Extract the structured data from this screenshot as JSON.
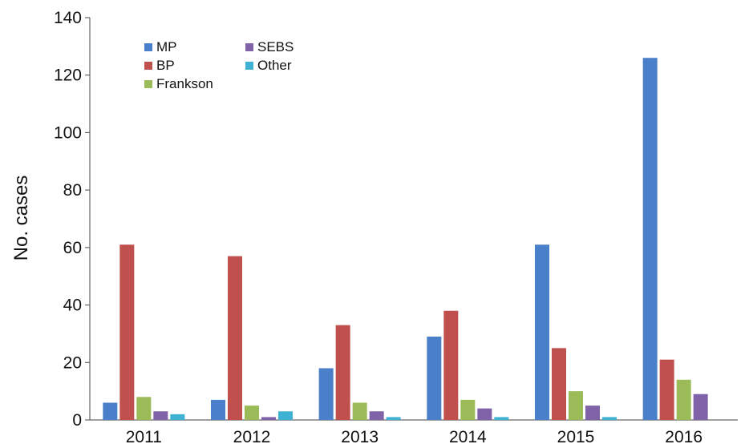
{
  "chart_data": {
    "type": "bar",
    "title": "",
    "xlabel": "",
    "ylabel": "No. cases",
    "ylim": [
      0,
      140
    ],
    "yticks": [
      0,
      20,
      40,
      60,
      80,
      100,
      120,
      140
    ],
    "grid": false,
    "legend_position": "top-left",
    "categories": [
      "2011",
      "2012",
      "2013",
      "2014",
      "2015",
      "2016"
    ],
    "series": [
      {
        "name": "MP",
        "color": "#4a7fc9",
        "values": [
          6,
          7,
          18,
          29,
          61,
          126
        ]
      },
      {
        "name": "BP",
        "color": "#c0504d",
        "values": [
          61,
          57,
          33,
          38,
          25,
          21
        ]
      },
      {
        "name": "Frankson",
        "color": "#9bbb59",
        "values": [
          8,
          5,
          6,
          7,
          10,
          14
        ]
      },
      {
        "name": "SEBS",
        "color": "#7f62a8",
        "values": [
          3,
          1,
          3,
          4,
          5,
          9
        ]
      },
      {
        "name": "Other",
        "color": "#3fb2d3",
        "values": [
          2,
          3,
          1,
          1,
          1,
          0
        ]
      }
    ]
  }
}
